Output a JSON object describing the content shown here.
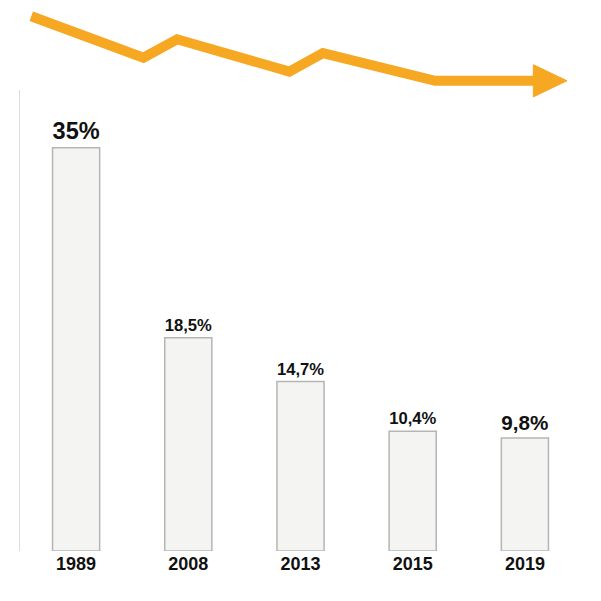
{
  "chart_data": {
    "type": "bar",
    "categories": [
      "1989",
      "2008",
      "2013",
      "2015",
      "2019"
    ],
    "values": [
      35,
      18.5,
      14.7,
      10.4,
      9.8
    ],
    "value_labels": [
      "35%",
      "18,5%",
      "14,7%",
      "10,4%",
      "9,8%"
    ],
    "data_labels": true,
    "color": "#f4f4f2",
    "ylim": [
      0,
      40
    ],
    "tick_labels": "x",
    "grid": false
  }
}
